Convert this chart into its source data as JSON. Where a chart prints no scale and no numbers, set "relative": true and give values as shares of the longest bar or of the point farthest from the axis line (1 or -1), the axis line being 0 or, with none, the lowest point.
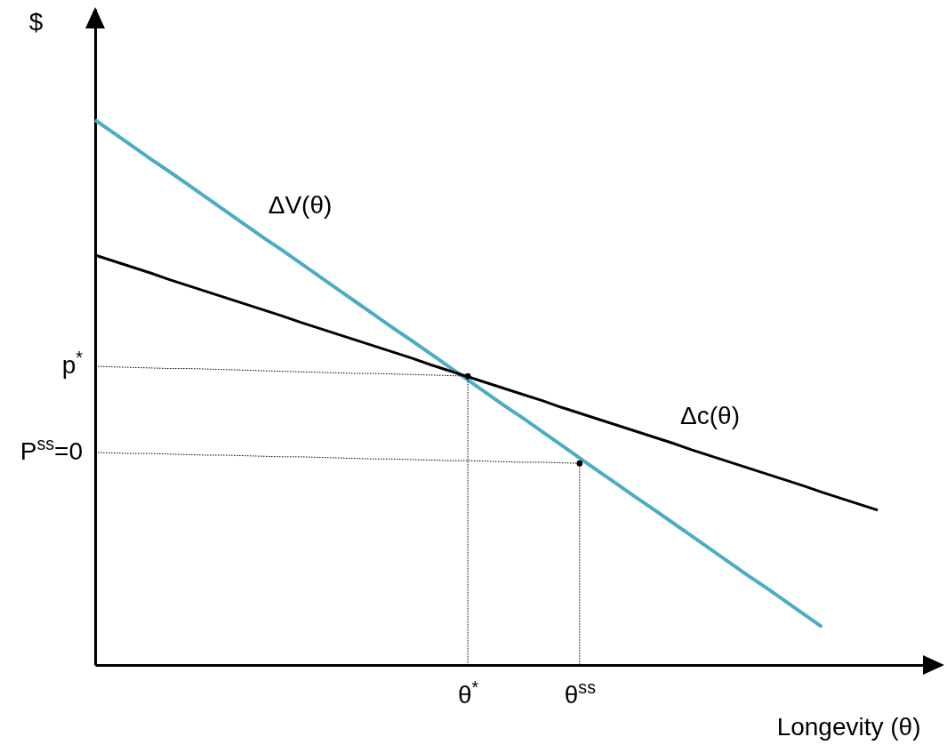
{
  "chart_data": {
    "type": "line",
    "relative": true,
    "xlabel": "Longevity (θ)",
    "ylabel": "$",
    "grid": false,
    "marker": "none",
    "categories": [
      null,
      null,
      null,
      null,
      null,
      null,
      null,
      null,
      null,
      null,
      null,
      null,
      null,
      null,
      null,
      null,
      null,
      null,
      null,
      null,
      "θ$^{*}$",
      null,
      null,
      null,
      null,
      null,
      "θ$^{ss}$",
      null,
      null,
      null,
      null,
      null,
      null,
      null,
      null,
      null,
      null,
      null,
      null,
      null,
      null,
      null,
      null,
      null,
      null,
      null
    ],
    "series": [
      {
        "name": "ΔV(θ)",
        "color": "#4bacc6",
        "values": [
          1,
          0.976,
          0.952,
          0.928,
          0.905,
          0.881,
          0.857,
          0.833,
          0.809,
          0.785,
          0.762,
          0.738,
          0.714,
          0.69,
          0.666,
          0.642,
          0.618,
          0.595,
          0.571,
          0.547,
          0.523,
          0.499,
          0.475,
          0.452,
          0.428,
          0.404,
          0.38,
          0.356,
          0.332,
          0.308,
          0.285,
          0.261,
          0.237,
          0.213,
          0.189,
          0.165,
          0.142,
          0.118,
          0.094,
          0.07,
          null,
          null,
          null,
          null,
          null,
          null
        ]
      },
      {
        "name": "Δc(θ)",
        "color": "#000000",
        "values": [
          0.752,
          0.741,
          0.73,
          0.719,
          0.707,
          0.696,
          0.685,
          0.674,
          0.663,
          0.652,
          0.641,
          0.629,
          0.618,
          0.607,
          0.596,
          0.585,
          0.574,
          0.563,
          0.551,
          0.54,
          0.529,
          0.518,
          0.507,
          0.496,
          0.485,
          0.473,
          0.462,
          0.451,
          0.44,
          0.429,
          0.418,
          0.407,
          0.395,
          0.384,
          0.373,
          0.362,
          0.351,
          0.34,
          0.329,
          0.317,
          0.306,
          0.295,
          0.284,
          null,
          null,
          null
        ]
      },
      {
        "color": "#000000",
        "line_style": "dotted",
        "values": [
          0.548,
          0.547,
          0.546,
          0.545,
          0.544,
          0.544,
          0.543,
          0.542,
          0.541,
          0.54,
          0.539,
          0.538,
          0.537,
          0.536,
          0.535,
          0.535,
          0.534,
          0.533,
          0.532,
          0.531,
          0.53,
          null,
          null,
          null,
          null,
          null,
          null,
          null,
          null,
          null,
          null,
          null,
          null,
          null,
          null,
          null,
          null,
          null,
          null,
          null,
          null,
          null,
          null,
          null,
          null,
          null
        ]
      },
      {
        "color": "#000000",
        "line_style": "dotted",
        "values": [
          0.39,
          0.389,
          0.388,
          0.388,
          0.387,
          0.386,
          0.385,
          0.385,
          0.384,
          0.383,
          0.382,
          0.382,
          0.381,
          0.38,
          0.379,
          0.378,
          0.378,
          0.377,
          0.376,
          0.375,
          0.375,
          0.374,
          0.373,
          0.372,
          0.372,
          0.371,
          0.37,
          null,
          null,
          null,
          null,
          null,
          null,
          null,
          null,
          null,
          null,
          null,
          null,
          null,
          null,
          null,
          null,
          null,
          null,
          null
        ]
      },
      {
        "type": "lollipop",
        "color": "#000000",
        "line_style": "dotted",
        "values": [
          null,
          null,
          null,
          null,
          null,
          null,
          null,
          null,
          null,
          null,
          null,
          null,
          null,
          null,
          null,
          null,
          null,
          null,
          null,
          null,
          0.53,
          null,
          null,
          null,
          null,
          null,
          0.37,
          null,
          null,
          null,
          null,
          null,
          null,
          null,
          null,
          null,
          null,
          null,
          null,
          null,
          null,
          null,
          null,
          null,
          null,
          null
        ]
      }
    ],
    "annotations": [
      "p$^{*}$",
      "P$^{ss}$=0"
    ]
  }
}
